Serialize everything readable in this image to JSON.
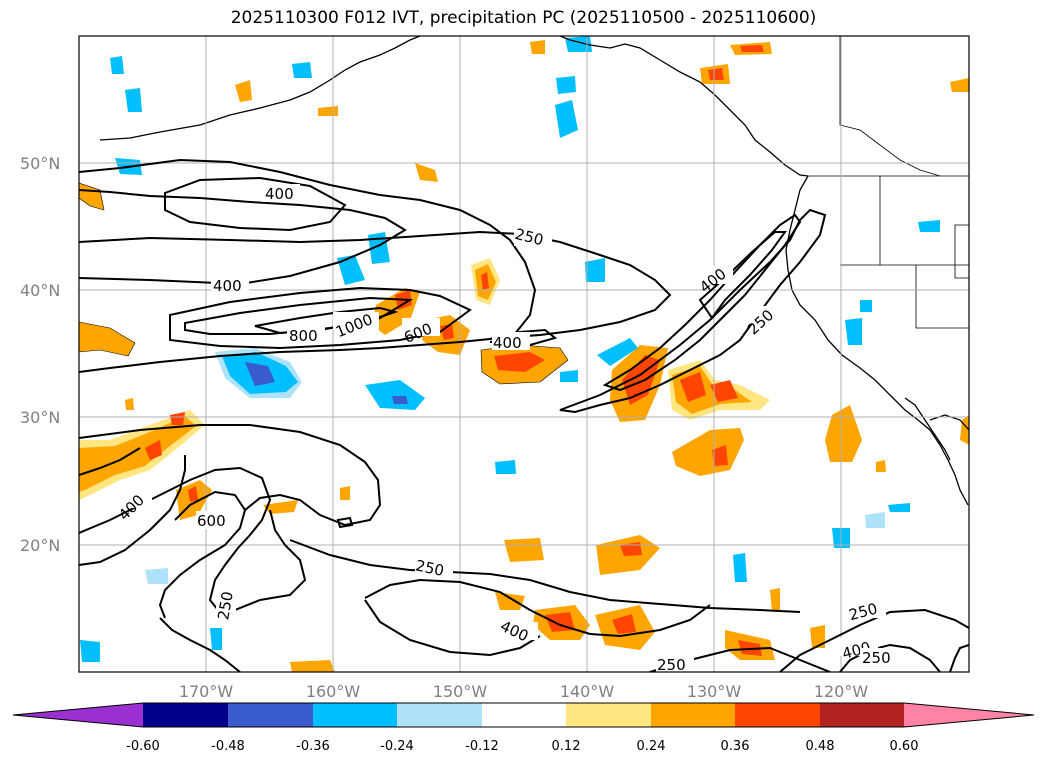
{
  "title": "2025110300 F012 IVT, precipitation PC (2025110500 - 2025110600)",
  "map": {
    "lon_labels": [
      "170°W",
      "160°W",
      "150°W",
      "140°W",
      "130°W",
      "120°W"
    ],
    "lat_labels": [
      "50°N",
      "40°N",
      "30°N",
      "20°N"
    ],
    "ivt_contour_labels": [
      "400",
      "250",
      "400",
      "800",
      "1000",
      "600",
      "400",
      "400",
      "250",
      "400",
      "600",
      "250",
      "250",
      "400",
      "250",
      "250",
      "400",
      "250"
    ]
  },
  "colorbar": {
    "ticks": [
      "-0.60",
      "-0.48",
      "-0.36",
      "-0.24",
      "-0.12",
      "0.12",
      "0.24",
      "0.36",
      "0.48",
      "0.60"
    ],
    "colors": [
      "#9b30d0",
      "#00008b",
      "#3a5bcc",
      "#00bfff",
      "#aee2f8",
      "#ffffff",
      "#ffe680",
      "#ffa500",
      "#ff4500",
      "#b22222",
      "#ff83a5"
    ]
  }
}
